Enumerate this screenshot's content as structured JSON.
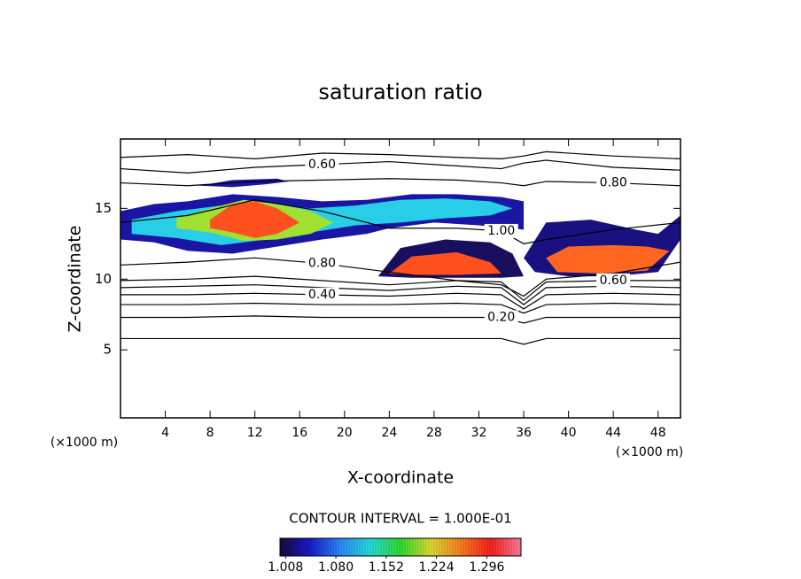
{
  "chart_data": {
    "type": "contour",
    "title": "saturation ratio",
    "xlabel": "X-coordinate",
    "ylabel": "Z-coordinate",
    "x_unit": "(×1000 m)",
    "annotation": "CONTOUR INTERVAL = 1.000E-01",
    "xlim": [
      0,
      50
    ],
    "ylim": [
      0.2,
      19.9
    ],
    "xticks": [
      4,
      8,
      12,
      16,
      20,
      24,
      28,
      32,
      36,
      40,
      44,
      48
    ],
    "yticks": [
      5,
      10,
      15
    ],
    "clim": [
      1.0,
      1.345
    ],
    "colorbar_ticks": [
      1.008,
      {
        "value": 1.08,
        "label": "1.080"
      },
      1.152,
      1.224,
      1.296
    ],
    "colormap": [
      "#1a0a3c",
      "#1a1ad0",
      "#2a8cff",
      "#28e0e0",
      "#30e030",
      "#e0e030",
      "#ff8020",
      "#ff2020",
      "#ff80a0"
    ],
    "contour_color": "#000000",
    "regions": [
      {
        "value": 1.03,
        "x": [
          0,
          3,
          6,
          10,
          14,
          18,
          22,
          26,
          30,
          34,
          36,
          36,
          32,
          28,
          24,
          22,
          18,
          14,
          10,
          6,
          3,
          0
        ],
        "y": [
          14.8,
          15.3,
          15.5,
          16,
          15.8,
          15.5,
          15.6,
          16,
          16,
          15.8,
          15.5,
          13.5,
          13.8,
          14,
          13.6,
          13.2,
          12.8,
          12.3,
          11.8,
          12,
          12.6,
          12.8
        ]
      },
      {
        "value": 1.12,
        "x": [
          1,
          5,
          9,
          13,
          17,
          21,
          25,
          29,
          33,
          35,
          33,
          29,
          25,
          21,
          17,
          13,
          9,
          5,
          1
        ],
        "y": [
          14.2,
          14.8,
          15.2,
          15.4,
          15,
          15.2,
          15.6,
          15.7,
          15.5,
          15,
          14.5,
          14.3,
          14,
          13.8,
          13.3,
          12.8,
          12.4,
          12.9,
          13.2
        ]
      },
      {
        "value": 1.2,
        "x": [
          5,
          8,
          11,
          14,
          17,
          19,
          17,
          14,
          11,
          8,
          5
        ],
        "y": [
          14.3,
          15,
          15.6,
          15.3,
          14.8,
          14,
          13.2,
          12.8,
          12.7,
          13.3,
          13.6
        ]
      },
      {
        "value": 1.28,
        "x": [
          8,
          10,
          12,
          14,
          16,
          14,
          12,
          10,
          8
        ],
        "y": [
          14.2,
          15.3,
          15.5,
          15,
          14,
          13.2,
          12.9,
          13.3,
          13.6
        ]
      },
      {
        "value": 1.01,
        "x": [
          23,
          25,
          29,
          33,
          35,
          36,
          34,
          30,
          26,
          23
        ],
        "y": [
          10.2,
          12.2,
          12.8,
          12.6,
          11.8,
          10.2,
          10.1,
          10.1,
          10.1,
          10.2
        ]
      },
      {
        "value": 1.28,
        "x": [
          24,
          26,
          30,
          33,
          34,
          30,
          26,
          24
        ],
        "y": [
          10.4,
          11.6,
          11.9,
          11.2,
          10.4,
          10.3,
          10.3,
          10.4
        ]
      },
      {
        "value": 1.02,
        "x": [
          36,
          38,
          42,
          46,
          48,
          50,
          50,
          48,
          44,
          40,
          37,
          36
        ],
        "y": [
          11.5,
          14,
          14.2,
          13.5,
          13.2,
          14.5,
          12.8,
          10.5,
          10.2,
          10.2,
          10.5,
          11.5
        ]
      },
      {
        "value": 1.27,
        "x": [
          38,
          40,
          44,
          47,
          49,
          47,
          43,
          39,
          38
        ],
        "y": [
          11.5,
          12.3,
          12.4,
          12.3,
          12,
          10.6,
          10.4,
          10.5,
          11.5
        ]
      },
      {
        "value": 1.03,
        "x": [
          7,
          10,
          14,
          15,
          13,
          10,
          7
        ],
        "y": [
          16.6,
          17,
          17.1,
          16.9,
          16.7,
          16.5,
          16.6
        ]
      }
    ],
    "contours": [
      {
        "level": 0.1,
        "label": null,
        "x": [
          0,
          6,
          12,
          18,
          24,
          30,
          34,
          36,
          38,
          44,
          50
        ],
        "y": [
          5.8,
          5.8,
          5.8,
          5.8,
          5.8,
          5.8,
          5.8,
          5.4,
          5.8,
          5.8,
          5.8
        ]
      },
      {
        "level": 0.2,
        "label": "0.20",
        "x": [
          0,
          6,
          12,
          18,
          24,
          30,
          34,
          36,
          38,
          44,
          50
        ],
        "y": [
          7.3,
          7.3,
          7.4,
          7.3,
          7.3,
          7.3,
          7.3,
          6.9,
          7.3,
          7.3,
          7.3
        ]
      },
      {
        "level": 0.3,
        "label": null,
        "x": [
          0,
          6,
          12,
          18,
          24,
          30,
          34,
          36,
          38,
          44,
          50
        ],
        "y": [
          8.2,
          8.2,
          8.3,
          8.2,
          8.2,
          8.3,
          8.2,
          7.6,
          8.2,
          8.3,
          8.2
        ]
      },
      {
        "level": 0.4,
        "label": "0.40",
        "x": [
          0,
          6,
          12,
          18,
          24,
          30,
          34,
          36,
          38,
          44,
          50
        ],
        "y": [
          8.9,
          8.9,
          9.0,
          8.9,
          8.8,
          9.0,
          8.9,
          7.9,
          8.9,
          9.0,
          8.9
        ]
      },
      {
        "level": 0.5,
        "label": null,
        "x": [
          0,
          6,
          12,
          18,
          24,
          30,
          34,
          36,
          38,
          44,
          50
        ],
        "y": [
          9.4,
          9.5,
          9.6,
          9.4,
          9.2,
          9.5,
          9.4,
          8.2,
          9.4,
          9.5,
          9.4
        ]
      },
      {
        "level": 0.6,
        "label": "0.60",
        "x": [
          0,
          6,
          12,
          18,
          24,
          30,
          34,
          36,
          38,
          44,
          50
        ],
        "y": [
          9.9,
          10,
          10.2,
          9.9,
          9.6,
          9.9,
          9.8,
          8.5,
          9.8,
          9.9,
          9.9
        ]
      },
      {
        "level": 0.8,
        "label": "0.80",
        "x": [
          0,
          6,
          12,
          18,
          24,
          30,
          34,
          36,
          38,
          44,
          50
        ],
        "y": [
          11,
          11.2,
          11.5,
          11.1,
          10.5,
          9.9,
          9.6,
          8.8,
          10,
          10.4,
          11.2
        ]
      },
      {
        "level": 1.0,
        "label": "1.00",
        "x": [
          0,
          6,
          12,
          18,
          24,
          30,
          34,
          36,
          38,
          44,
          50
        ],
        "y": [
          14,
          14.5,
          15.6,
          14.8,
          13.6,
          13.6,
          13.4,
          12.5,
          12.8,
          13.5,
          14
        ]
      },
      {
        "level": 0.8,
        "label": "0.80",
        "x": [
          0,
          6,
          12,
          18,
          24,
          30,
          34,
          36,
          38,
          44,
          50
        ],
        "y": [
          16.8,
          16.6,
          16.9,
          17.0,
          17.1,
          17.0,
          16.8,
          16.6,
          16.9,
          16.8,
          16.6
        ]
      },
      {
        "level": 0.6,
        "label": "0.60",
        "x": [
          0,
          6,
          12,
          18,
          24,
          30,
          34,
          36,
          38,
          44,
          50
        ],
        "y": [
          17.8,
          17.5,
          17.9,
          18.1,
          18.3,
          18.0,
          17.8,
          18.2,
          18.4,
          17.9,
          17.7
        ]
      },
      {
        "level": 0.5,
        "label": null,
        "x": [
          0,
          6,
          12,
          18,
          24,
          30,
          34,
          36,
          38,
          44,
          50
        ],
        "y": [
          18.6,
          18.8,
          18.5,
          18.9,
          18.8,
          18.6,
          18.5,
          18.7,
          19.0,
          18.7,
          18.5
        ]
      }
    ]
  }
}
